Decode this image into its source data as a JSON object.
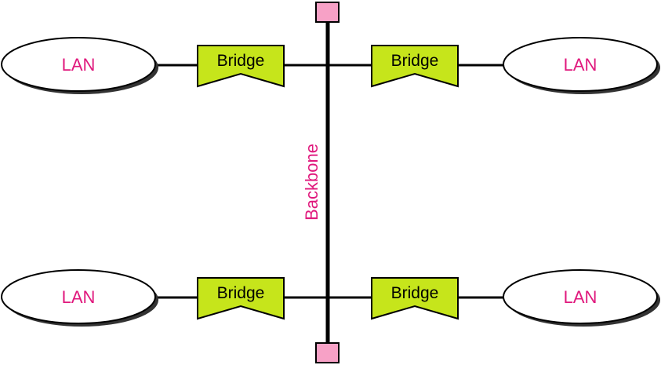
{
  "colors": {
    "lan_text": "#e0197d",
    "bridge_fill": "#c6e51b",
    "terminator_fill": "#f7a1c6",
    "backbone_label": "#e0197d",
    "line": "#000000",
    "shadow": "#333333"
  },
  "backbone": {
    "label": "Backbone"
  },
  "lans": [
    {
      "label": "LAN"
    },
    {
      "label": "LAN"
    },
    {
      "label": "LAN"
    },
    {
      "label": "LAN"
    }
  ],
  "bridges": [
    {
      "label": "Bridge"
    },
    {
      "label": "Bridge"
    },
    {
      "label": "Bridge"
    },
    {
      "label": "Bridge"
    }
  ]
}
